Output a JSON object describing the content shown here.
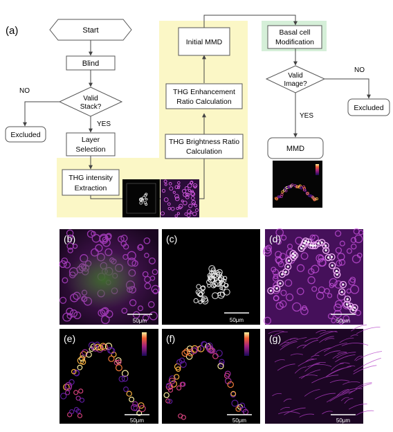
{
  "flowchart": {
    "panel_label": "(a)",
    "start": "Start",
    "blind": "Blind",
    "valid_stack": [
      "Valid",
      "Stack?"
    ],
    "no_left": "NO",
    "yes_left": "YES",
    "excluded_left": "Excluded",
    "layer_selection": [
      "Layer",
      "Selection"
    ],
    "thg_intensity": [
      "THG intensity",
      "Extraction"
    ],
    "thg_brightness": [
      "THG Brightness Ratio",
      "Calculation"
    ],
    "thg_enhancement": [
      "THG Enhancement",
      "Ratio Calculation"
    ],
    "initial_mmd": "Initial MMD",
    "basal_cell": [
      "Basal cell",
      "Modification"
    ],
    "valid_image": [
      "Valid",
      "Image?"
    ],
    "no_right": "NO",
    "yes_right": "YES",
    "excluded_right": "Excluded",
    "mmd": "MMD"
  },
  "panels": {
    "b": {
      "label": "(b)",
      "scale": "50μm"
    },
    "c": {
      "label": "(c)",
      "scale": "50μm"
    },
    "d": {
      "label": "(d)",
      "scale": "50μm"
    },
    "e": {
      "label": "(e)",
      "scale": "50μm"
    },
    "f": {
      "label": "(f)",
      "scale": "50μm"
    },
    "g": {
      "label": "(g)",
      "scale": "50μm"
    }
  },
  "colors": {
    "highlight_yellow": "#fbf7c6",
    "highlight_green": "#d5efd8",
    "magenta": "#c83cd8",
    "arrow": "#444444"
  }
}
